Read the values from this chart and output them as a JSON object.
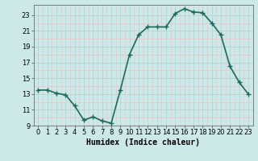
{
  "xlabel": "Humidex (Indice chaleur)",
  "x": [
    0,
    1,
    2,
    3,
    4,
    5,
    6,
    7,
    8,
    9,
    10,
    11,
    12,
    13,
    14,
    15,
    16,
    17,
    18,
    19,
    20,
    21,
    22,
    23
  ],
  "y": [
    13.5,
    13.5,
    13.1,
    12.9,
    11.5,
    9.7,
    10.1,
    9.6,
    9.3,
    13.5,
    18.0,
    20.5,
    21.5,
    21.5,
    21.5,
    23.2,
    23.8,
    23.4,
    23.3,
    22.0,
    20.5,
    16.5,
    14.5,
    13.0
  ],
  "line_color": "#1a6b5e",
  "bg_color": "#cce8e8",
  "grid_major_color": "#b0d4d4",
  "grid_minor_color": "#e8c8c8",
  "text_color": "#000000",
  "ylim": [
    9,
    24
  ],
  "xlim": [
    -0.5,
    23.5
  ],
  "yticks": [
    9,
    11,
    13,
    15,
    17,
    19,
    21,
    23
  ],
  "xtick_vals": [
    0,
    1,
    2,
    3,
    4,
    5,
    6,
    7,
    8,
    9,
    10,
    11,
    12,
    13,
    14,
    15,
    16,
    17,
    18,
    19,
    20,
    21,
    22,
    23
  ],
  "xtick_labels": [
    "0",
    "1",
    "2",
    "3",
    "4",
    "5",
    "6",
    "7",
    "8",
    "9",
    "10",
    "11",
    "12",
    "13",
    "14",
    "15",
    "16",
    "17",
    "18",
    "19",
    "20",
    "21",
    "22",
    "23"
  ],
  "marker": "+",
  "linewidth": 1.2,
  "markersize": 4,
  "xlabel_fontsize": 7,
  "tick_fontsize": 6
}
